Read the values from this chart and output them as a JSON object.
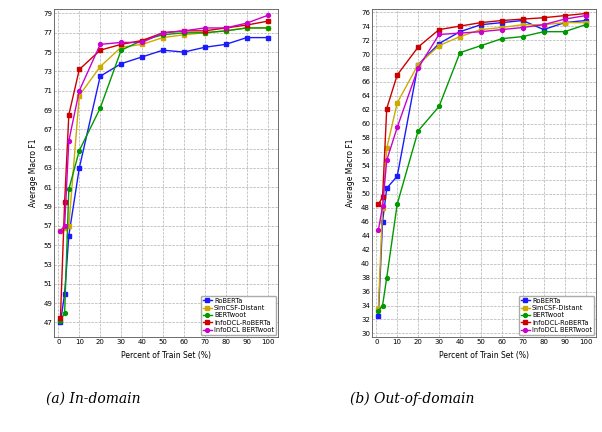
{
  "x": [
    1,
    3,
    5,
    10,
    20,
    30,
    40,
    50,
    60,
    70,
    80,
    90,
    100
  ],
  "in_domain": {
    "RoBERTa": [
      47.0,
      50.0,
      56.0,
      63.0,
      72.5,
      73.8,
      74.5,
      75.2,
      75.0,
      75.5,
      75.8,
      76.5,
      76.5
    ],
    "SimCSF-Distant": [
      56.5,
      56.8,
      57.0,
      70.5,
      73.5,
      75.5,
      75.8,
      76.5,
      76.8,
      77.0,
      77.2,
      77.5,
      77.5
    ],
    "BERTwoot": [
      47.2,
      48.0,
      60.8,
      64.8,
      69.2,
      75.2,
      76.2,
      76.8,
      77.0,
      77.0,
      77.2,
      77.5,
      77.5
    ],
    "InfoDCL-RoBERTa": [
      47.5,
      59.5,
      68.5,
      73.2,
      75.2,
      75.8,
      76.2,
      77.0,
      77.2,
      77.2,
      77.5,
      77.8,
      78.2
    ],
    "InfoDCL BERTwoot": [
      56.5,
      57.0,
      65.8,
      71.0,
      75.8,
      76.0,
      76.0,
      77.0,
      77.2,
      77.5,
      77.5,
      78.0,
      78.8
    ]
  },
  "out_domain": {
    "RoBERTa": [
      32.5,
      46.0,
      50.8,
      52.5,
      68.5,
      71.5,
      73.2,
      74.2,
      74.5,
      74.8,
      73.5,
      74.5,
      74.8
    ],
    "SimCSF-Distant": [
      33.5,
      48.0,
      56.5,
      63.0,
      68.5,
      71.2,
      72.5,
      73.5,
      73.8,
      74.2,
      74.2,
      74.5,
      74.5
    ],
    "BERTwoot": [
      33.2,
      34.0,
      38.0,
      48.5,
      59.0,
      62.5,
      70.2,
      71.2,
      72.2,
      72.5,
      73.2,
      73.2,
      74.2
    ],
    "InfoDCL-RoBERTa": [
      48.5,
      49.5,
      62.2,
      67.0,
      71.0,
      73.5,
      74.0,
      74.5,
      74.8,
      75.0,
      75.2,
      75.5,
      75.8
    ],
    "InfoDCL BERTwoot": [
      44.8,
      48.2,
      54.8,
      59.5,
      68.0,
      72.8,
      73.0,
      73.2,
      73.5,
      73.8,
      74.2,
      75.0,
      75.5
    ]
  },
  "colors": {
    "RoBERTa": "#1a1aff",
    "SimCSF-Distant": "#ccaa00",
    "BERTwoot": "#009900",
    "InfoDCL-RoBERTa": "#cc0000",
    "InfoDCL BERTwoot": "#cc00cc"
  },
  "markers": {
    "RoBERTa": "s",
    "SimCSF-Distant": "s",
    "BERTwoot": "o",
    "InfoDCL-RoBERTa": "s",
    "InfoDCL BERTwoot": "o"
  },
  "in_ylim": [
    45.5,
    79.5
  ],
  "out_ylim": [
    29.5,
    76.5
  ],
  "in_yticks": [
    47,
    49,
    51,
    53,
    55,
    57,
    59,
    61,
    63,
    65,
    67,
    69,
    71,
    73,
    75,
    77,
    79
  ],
  "out_yticks": [
    30,
    32,
    34,
    36,
    38,
    40,
    42,
    44,
    46,
    48,
    50,
    52,
    54,
    56,
    58,
    60,
    62,
    64,
    66,
    68,
    70,
    72,
    74,
    76
  ],
  "xlabel": "Percent of Train Set (%)",
  "ylabel": "Average Macro F1",
  "xticks": [
    0,
    10,
    20,
    30,
    40,
    50,
    60,
    70,
    80,
    90,
    100
  ],
  "title_a": "(a) In-domain",
  "title_b": "(b) Out-of-domain",
  "series_names": [
    "RoBERTa",
    "SimCSF-Distant",
    "BERTwoot",
    "InfoDCL-RoBERTa",
    "InfoDCL BERTwoot"
  ]
}
